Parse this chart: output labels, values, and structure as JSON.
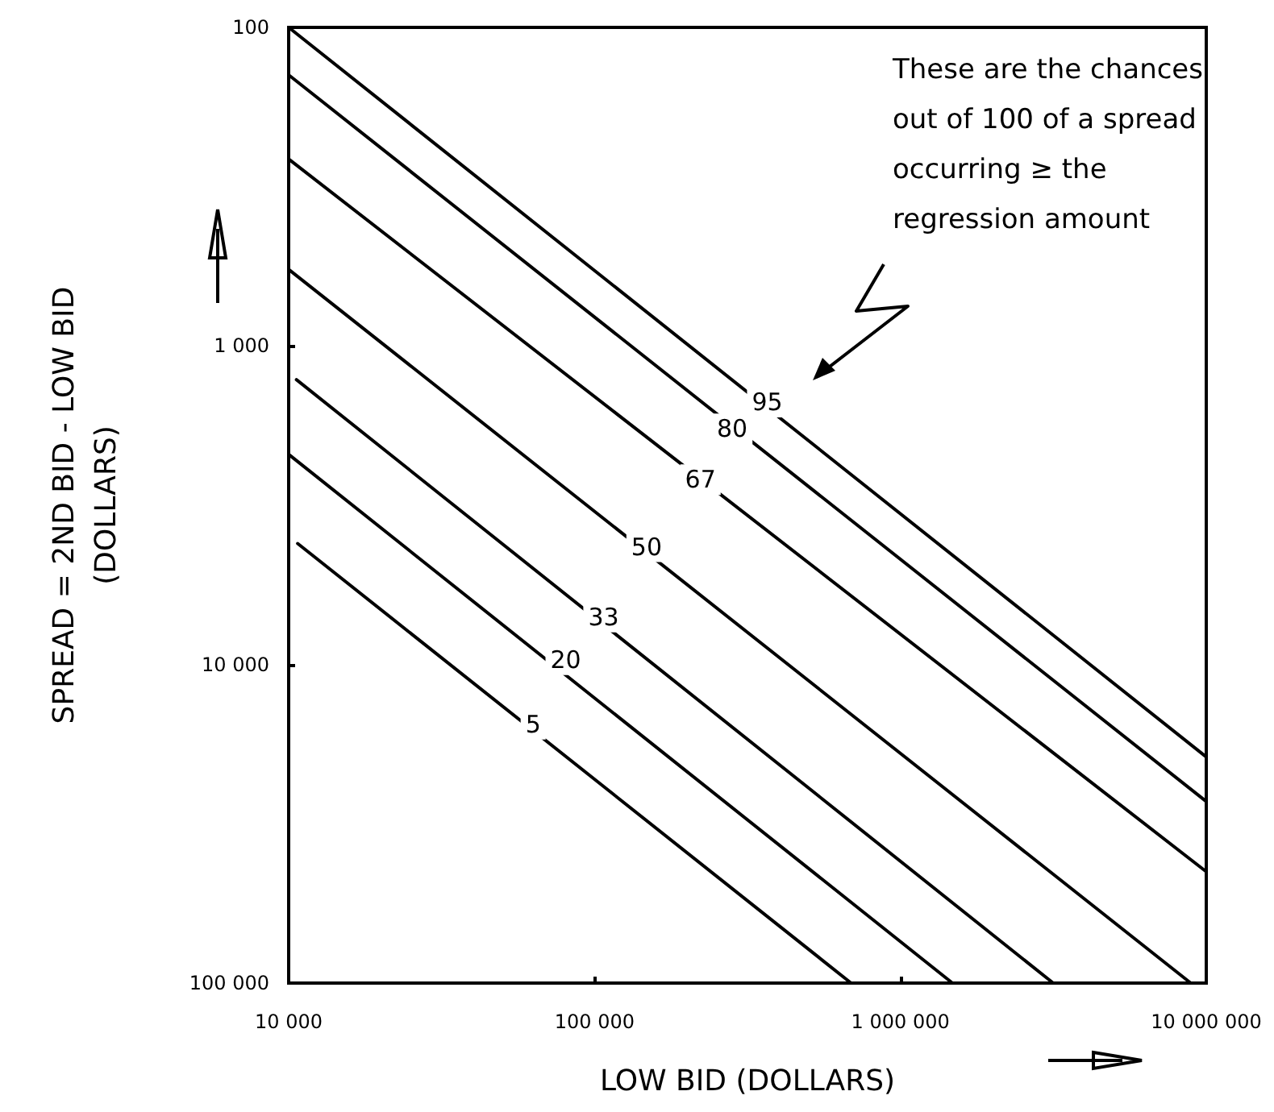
{
  "chart_data": {
    "type": "line",
    "xlabel": "LOW BID (DOLLARS)",
    "ylabel": "SPREAD = 2ND BID - LOW BID\n(DOLLARS)",
    "log": "xy",
    "marker": "none",
    "line_style": "solid",
    "xlim": [
      10000,
      10000000
    ],
    "xticks": [
      {
        "value": 10000,
        "label": "10 000"
      },
      {
        "value": 100000,
        "label": "100 000"
      },
      {
        "value": 1000000,
        "label": "1 000 000"
      },
      {
        "value": 10000000,
        "label": "10 000 000"
      }
    ],
    "ylim": [
      100000,
      100
    ],
    "yticks": [
      {
        "value": 100,
        "label": "100"
      },
      {
        "value": 1000,
        "label": "1 000"
      },
      {
        "value": 10000,
        "label": "10 000"
      },
      {
        "value": 100000,
        "label": "100 000"
      }
    ],
    "series": [
      {
        "color": "#000000",
        "x": [
          10000,
          10000000
        ],
        "values": [
          100,
          19500
        ]
      },
      {
        "color": "#000000",
        "x": [
          10000,
          10000000
        ],
        "values": [
          141,
          26900
        ]
      },
      {
        "color": "#000000",
        "x": [
          10000,
          10000000
        ],
        "values": [
          259,
          44700
        ]
      },
      {
        "color": "#000000",
        "x": [
          10000,
          8900000
        ],
        "values": [
          575,
          100000
        ]
      },
      {
        "color": "#000000",
        "x": [
          10600,
          3160000
        ],
        "values": [
          1276,
          100000
        ]
      },
      {
        "color": "#000000",
        "x": [
          10000,
          1480000
        ],
        "values": [
          2190,
          100000
        ]
      },
      {
        "color": "#000000",
        "x": [
          10700,
          690000
        ],
        "values": [
          4170,
          100000
        ]
      }
    ],
    "annotations": [
      "These are the chances\nout of 100 of a spread\noccurring ≥ the\nregression amount",
      {
        "text": "95",
        "x": 367000,
        "y": 1500
      },
      {
        "text": "80",
        "x": 282000,
        "y": 1820
      },
      {
        "text": "67",
        "x": 222000,
        "y": 2630
      },
      {
        "text": "50",
        "x": 148000,
        "y": 4270
      },
      {
        "text": "33",
        "x": 107000,
        "y": 7100
      },
      {
        "text": "20",
        "x": 80500,
        "y": 9660
      },
      {
        "text": "5",
        "x": 63000,
        "y": 15400
      }
    ]
  }
}
